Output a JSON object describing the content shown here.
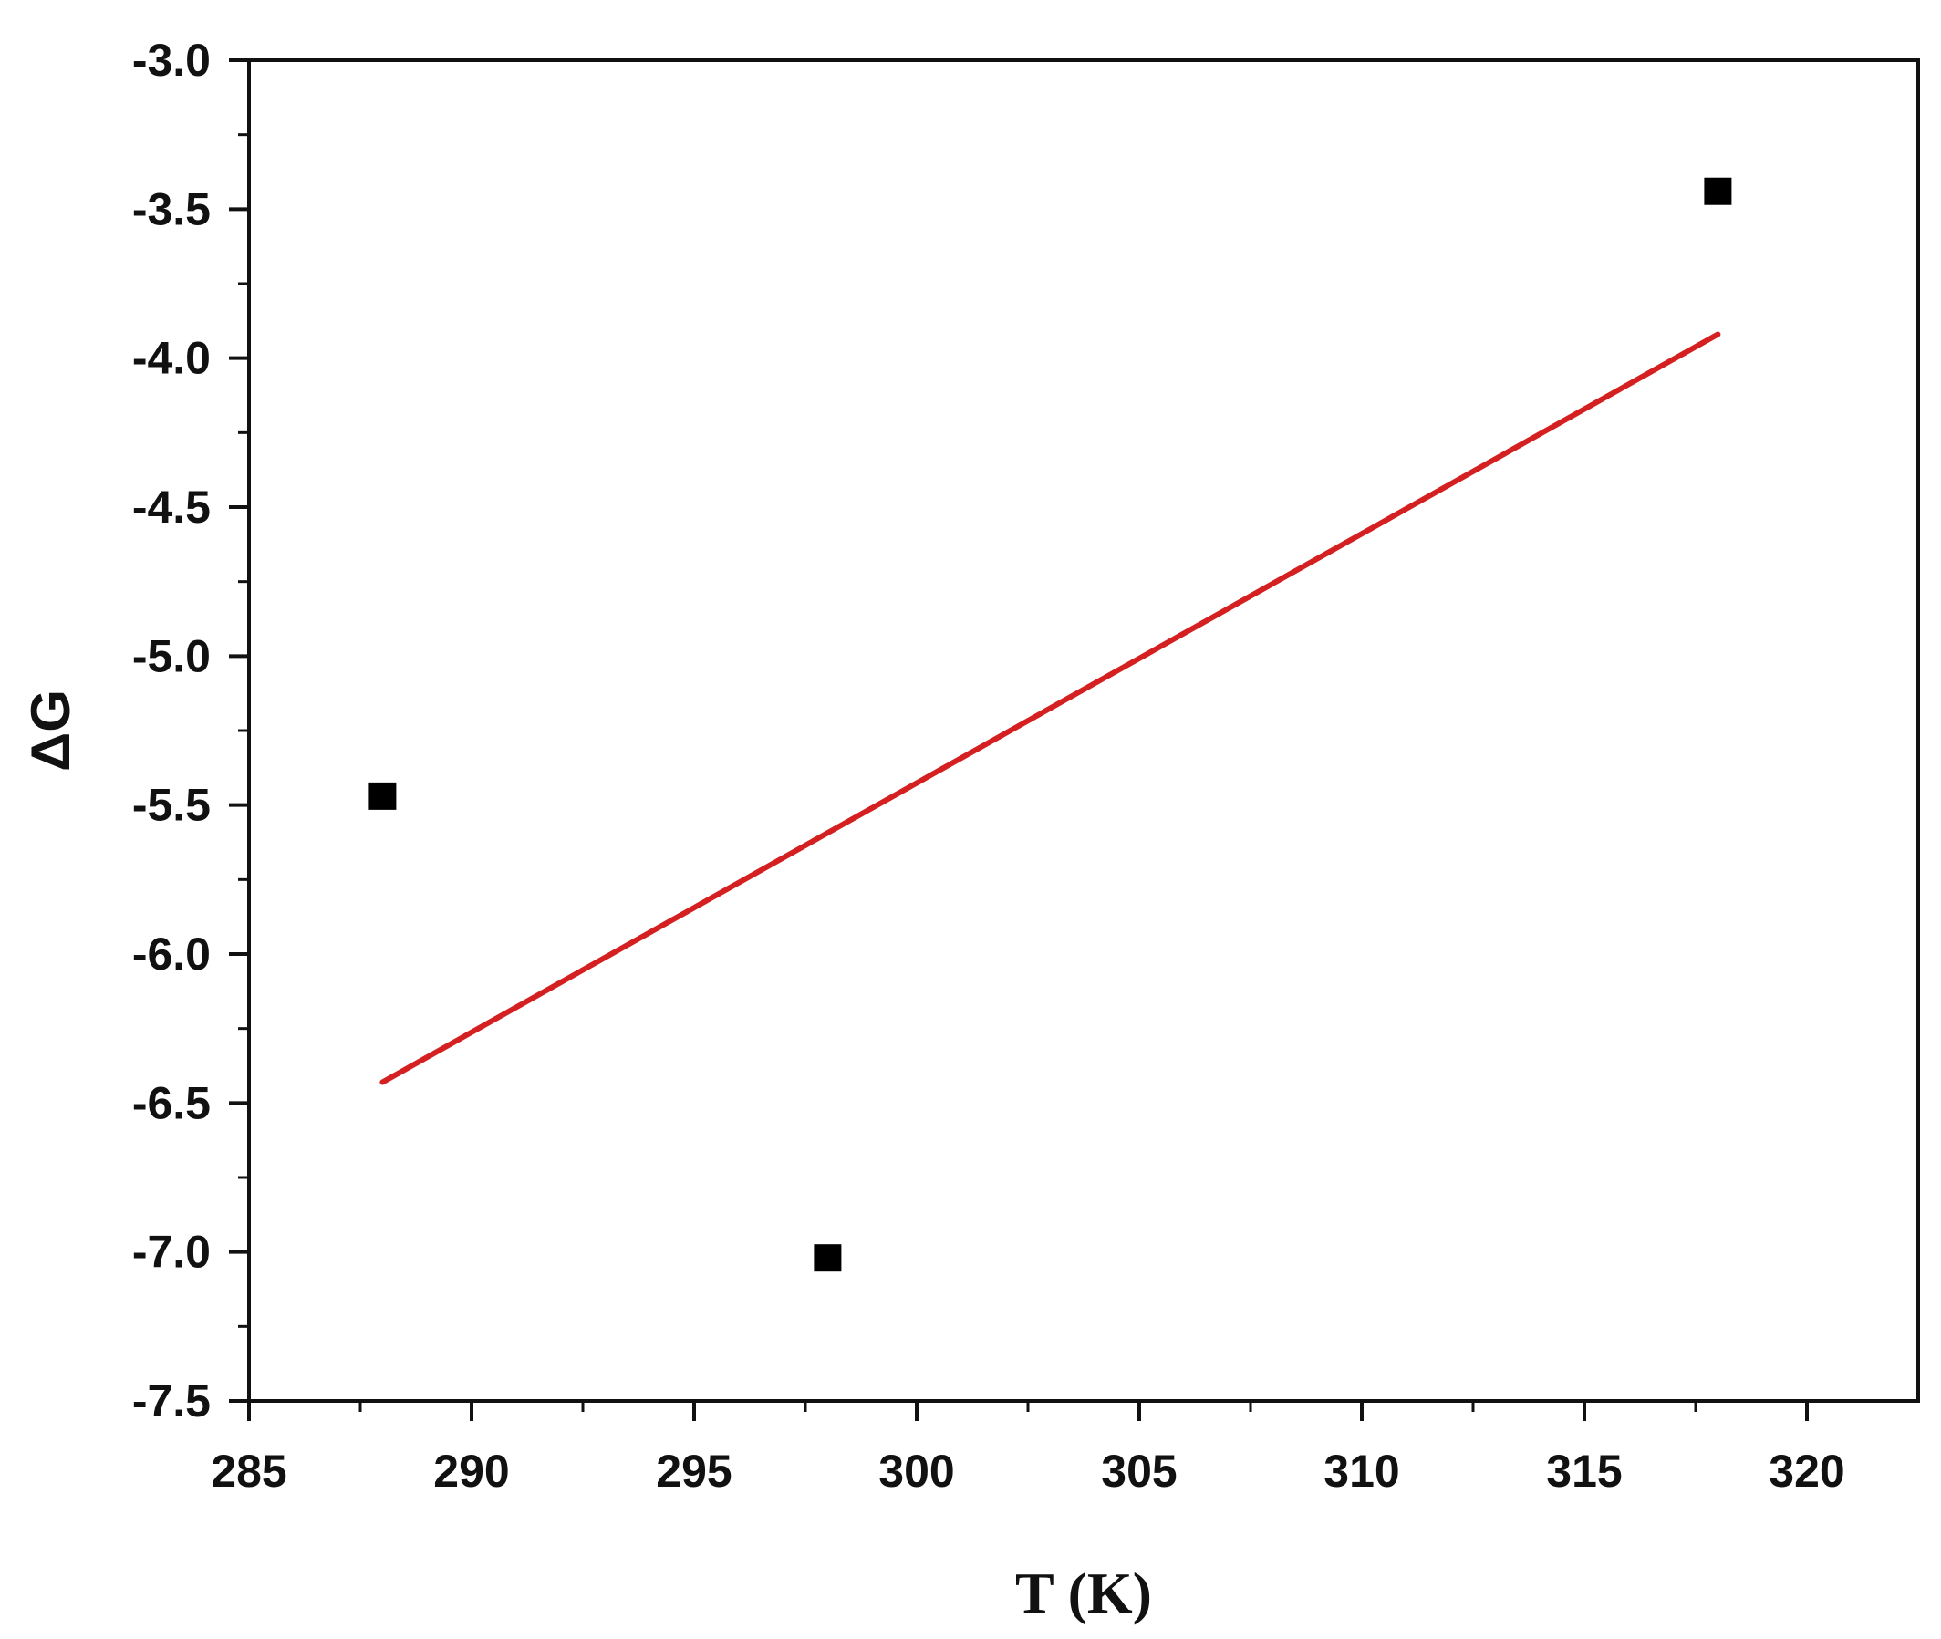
{
  "chart_data": {
    "type": "scatter",
    "title": "",
    "xlabel": "T (K)",
    "ylabel": "ΔG",
    "xlim": [
      285,
      322.5
    ],
    "ylim": [
      -7.5,
      -3.0
    ],
    "x_ticks": [
      285,
      290,
      295,
      300,
      305,
      310,
      315,
      320
    ],
    "x_tick_labels": [
      "285",
      "290",
      "295",
      "300",
      "305",
      "310",
      "315",
      "320"
    ],
    "y_ticks": [
      -3.0,
      -3.5,
      -4.0,
      -4.5,
      -5.0,
      -5.5,
      -6.0,
      -6.5,
      -7.0,
      -7.5
    ],
    "y_tick_labels": [
      "-3.0",
      "-3.5",
      "-4.0",
      "-4.5",
      "-5.0",
      "-5.5",
      "-6.0",
      "-6.5",
      "-7.0",
      "-7.5"
    ],
    "grid": false,
    "legend": "none",
    "series": [
      {
        "type": "scatter",
        "x": [
          288,
          298,
          318
        ],
        "y": [
          -5.47,
          -7.02,
          -3.44
        ],
        "color": "#000000",
        "marker": "square"
      },
      {
        "type": "line",
        "x": [
          288,
          318
        ],
        "y": [
          -6.43,
          -3.92
        ],
        "color": "#d42020"
      }
    ]
  }
}
